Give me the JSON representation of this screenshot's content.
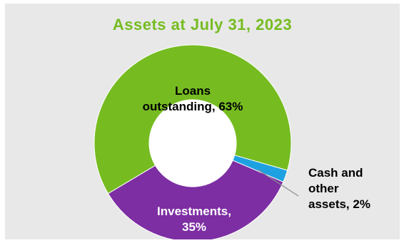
{
  "chart_data": {
    "type": "pie",
    "title": "Assets at July 31, 2023",
    "donut": true,
    "slices": [
      {
        "name": "Loans outstanding",
        "value": 63,
        "color": "#76bc21",
        "label_lines": [
          "Loans",
          "outstanding, 63%"
        ]
      },
      {
        "name": "Cash and other assets",
        "value": 2,
        "color": "#1ea1e0",
        "label_lines": [
          "Cash and",
          "other",
          "assets, 2%"
        ]
      },
      {
        "name": "Investments",
        "value": 35,
        "color": "#7d2ea3",
        "label_lines": [
          "Investments,",
          "35%"
        ]
      }
    ],
    "title_color": "#76bc21",
    "background": "#e8e8e8"
  }
}
